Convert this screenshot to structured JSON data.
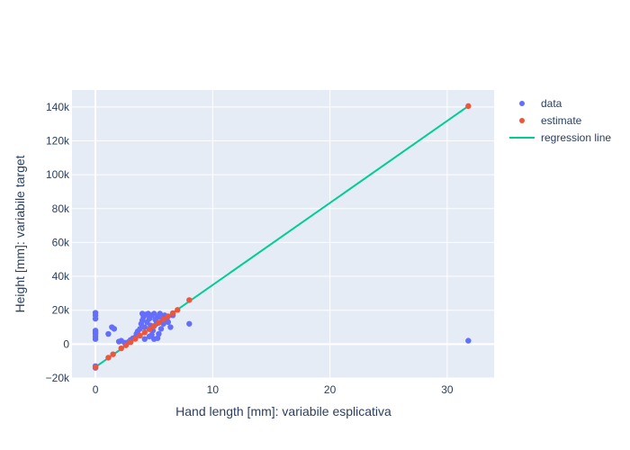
{
  "chart_data": {
    "type": "scatter",
    "xlabel": "Hand length [mm]: variabile esplicativa",
    "ylabel": "Height [mm]: variabile target",
    "xlim": [
      -2,
      34
    ],
    "ylim": [
      -20000,
      150000
    ],
    "x_ticks": [
      0,
      10,
      20,
      30
    ],
    "x_tick_labels": [
      "0",
      "10",
      "20",
      "30"
    ],
    "y_ticks": [
      -20000,
      0,
      20000,
      40000,
      60000,
      80000,
      100000,
      120000,
      140000
    ],
    "y_tick_labels": [
      "−20k",
      "0",
      "20k",
      "40k",
      "60k",
      "80k",
      "100k",
      "120k",
      "140k"
    ],
    "grid": true,
    "legend_position": "top-right",
    "colors": {
      "plot_bg": "#e5ecf6",
      "grid": "#ffffff",
      "data": "#636efa",
      "estimate": "#ef553b",
      "regression": "#00cc96"
    },
    "series": [
      {
        "name": "data",
        "mode": "markers",
        "points": [
          [
            0,
            18500
          ],
          [
            0,
            17000
          ],
          [
            0,
            15000
          ],
          [
            0,
            8000
          ],
          [
            0,
            7000
          ],
          [
            0,
            6000
          ],
          [
            0,
            4500
          ],
          [
            0,
            3000
          ],
          [
            0,
            -13000
          ],
          [
            0,
            -14000
          ],
          [
            1.1,
            6000
          ],
          [
            1.4,
            10000
          ],
          [
            1.6,
            9000
          ],
          [
            2.0,
            1500
          ],
          [
            2.2,
            2000
          ],
          [
            2.5,
            800
          ],
          [
            2.8,
            1200
          ],
          [
            3.0,
            2500
          ],
          [
            3.2,
            3500
          ],
          [
            3.4,
            4000
          ],
          [
            3.5,
            6000
          ],
          [
            3.6,
            7500
          ],
          [
            3.8,
            9000
          ],
          [
            3.9,
            12000
          ],
          [
            4.0,
            14000
          ],
          [
            4.0,
            18000
          ],
          [
            4.1,
            16000
          ],
          [
            4.2,
            10000
          ],
          [
            4.3,
            17500
          ],
          [
            4.4,
            13000
          ],
          [
            4.5,
            18000
          ],
          [
            4.6,
            15000
          ],
          [
            4.7,
            11000
          ],
          [
            4.8,
            17000
          ],
          [
            4.9,
            8000
          ],
          [
            5.0,
            18000
          ],
          [
            5.1,
            14500
          ],
          [
            5.2,
            12000
          ],
          [
            5.3,
            16000
          ],
          [
            5.4,
            6000
          ],
          [
            5.5,
            18000
          ],
          [
            5.6,
            9000
          ],
          [
            5.7,
            15000
          ],
          [
            5.8,
            12000
          ],
          [
            5.9,
            17000
          ],
          [
            6.0,
            16000
          ],
          [
            6.1,
            14000
          ],
          [
            6.2,
            13000
          ],
          [
            6.4,
            10000
          ],
          [
            6.6,
            17000
          ],
          [
            4.2,
            3000
          ],
          [
            4.6,
            4500
          ],
          [
            5.0,
            3000
          ],
          [
            5.3,
            3500
          ],
          [
            4.8,
            5500
          ],
          [
            8.0,
            12000
          ],
          [
            31.8,
            2000
          ]
        ]
      },
      {
        "name": "estimate",
        "mode": "markers",
        "points": [
          [
            0,
            -13500
          ],
          [
            1.1,
            -8000
          ],
          [
            1.5,
            -6000
          ],
          [
            2.2,
            -2500
          ],
          [
            2.6,
            -700
          ],
          [
            3.0,
            1200
          ],
          [
            3.4,
            3100
          ],
          [
            3.8,
            5000
          ],
          [
            4.2,
            6900
          ],
          [
            4.6,
            8800
          ],
          [
            5.0,
            10700
          ],
          [
            5.4,
            12600
          ],
          [
            5.8,
            14500
          ],
          [
            6.2,
            16400
          ],
          [
            6.6,
            18300
          ],
          [
            7.0,
            20200
          ],
          [
            8.0,
            26000
          ],
          [
            31.8,
            140500
          ]
        ]
      },
      {
        "name": "regression line",
        "mode": "lines",
        "points": [
          [
            0,
            -13500
          ],
          [
            31.8,
            140500
          ]
        ]
      }
    ]
  }
}
